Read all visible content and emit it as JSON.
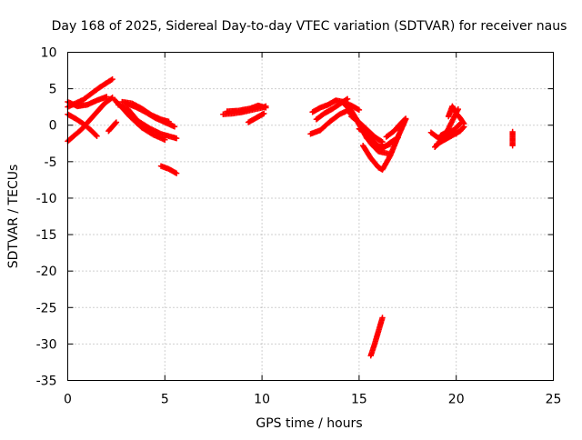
{
  "chart_data": {
    "type": "scatter",
    "title": "Day 168 of 2025, Sidereal Day-to-day VTEC variation (SDTVAR) for receiver naus",
    "xlabel": "GPS time / hours",
    "ylabel": "SDTVAR / TECUs",
    "xlim": [
      0,
      25
    ],
    "ylim": [
      -35,
      10
    ],
    "xticks": [
      0,
      5,
      10,
      15,
      20,
      25
    ],
    "xtick_labels": [
      "0",
      "5",
      "10",
      "15",
      "20",
      "25"
    ],
    "yticks": [
      10,
      5,
      0,
      -5,
      -10,
      -15,
      -20,
      -25,
      -30,
      -35
    ],
    "ytick_labels": [
      "10",
      "5",
      "0",
      "-5",
      "-10",
      "-15",
      "-20",
      "-25",
      "-30",
      "-35"
    ],
    "grid": true,
    "marker": "plus",
    "series": [
      {
        "name": "SDTVAR",
        "color": "#ff0000",
        "tracks": [
          {
            "x": [
              0.0,
              0.4,
              0.8,
              1.2,
              1.6,
              2.0,
              2.3
            ],
            "y": [
              2.5,
              3.0,
              3.5,
              4.3,
              5.1,
              5.8,
              6.3
            ]
          },
          {
            "x": [
              0.0,
              0.3,
              0.7,
              1.1,
              1.5,
              1.9,
              2.3
            ],
            "y": [
              -2.2,
              -1.5,
              -0.6,
              0.6,
              1.8,
              3.0,
              3.8
            ]
          },
          {
            "x": [
              0.0,
              0.4,
              0.8,
              1.2,
              1.5
            ],
            "y": [
              1.5,
              0.9,
              0.2,
              -0.7,
              -1.5
            ]
          },
          {
            "x": [
              0.0,
              0.5,
              1.0,
              1.5,
              2.0
            ],
            "y": [
              3.2,
              2.6,
              2.8,
              3.4,
              3.9
            ]
          },
          {
            "x": [
              2.1,
              2.3,
              2.5
            ],
            "y": [
              -0.8,
              -0.2,
              0.4
            ]
          },
          {
            "x": [
              2.4,
              2.8,
              3.2,
              3.8,
              4.4,
              5.0
            ],
            "y": [
              3.5,
              2.4,
              1.2,
              -0.3,
              -1.3,
              -2.0
            ]
          },
          {
            "x": [
              2.6,
              3.1,
              3.6,
              4.2,
              4.8,
              5.6
            ],
            "y": [
              2.8,
              2.2,
              0.6,
              -0.4,
              -1.2,
              -1.8
            ]
          },
          {
            "x": [
              2.8,
              3.3,
              3.8,
              4.3,
              4.8,
              5.2
            ],
            "y": [
              3.2,
              3.0,
              2.3,
              1.4,
              0.8,
              0.5
            ]
          },
          {
            "x": [
              3.0,
              3.5,
              4.0,
              4.5,
              5.0,
              5.5
            ],
            "y": [
              3.0,
              2.5,
              1.8,
              1.0,
              0.4,
              -0.2
            ]
          },
          {
            "x": [
              4.8,
              5.2,
              5.6
            ],
            "y": [
              -5.6,
              -6.0,
              -6.6
            ]
          },
          {
            "x": [
              8.0,
              8.5,
              9.0,
              9.5,
              10.0,
              10.2
            ],
            "y": [
              1.5,
              1.6,
              1.8,
              2.1,
              2.4,
              2.6
            ]
          },
          {
            "x": [
              8.2,
              8.8,
              9.4,
              9.8,
              10.2
            ],
            "y": [
              1.9,
              2.0,
              2.3,
              2.7,
              2.4
            ]
          },
          {
            "x": [
              9.3,
              9.7,
              10.1
            ],
            "y": [
              0.4,
              1.0,
              1.6
            ]
          },
          {
            "x": [
              12.5,
              13.0,
              13.5,
              14.0,
              14.4,
              14.8,
              15.3
            ],
            "y": [
              -1.2,
              -0.7,
              0.5,
              1.5,
              2.0,
              1.0,
              -0.8
            ]
          },
          {
            "x": [
              12.6,
              13.0,
              13.4,
              13.8,
              14.2,
              14.6,
              15.0
            ],
            "y": [
              1.8,
              2.4,
              2.8,
              3.4,
              3.2,
              2.7,
              2.1
            ]
          },
          {
            "x": [
              12.8,
              13.2,
              13.6,
              14.0,
              14.4
            ],
            "y": [
              0.8,
              1.6,
              2.2,
              2.9,
              3.6
            ]
          },
          {
            "x": [
              14.2,
              14.6,
              15.0,
              15.4,
              15.8,
              16.2,
              16.6
            ],
            "y": [
              3.0,
              2.0,
              0.2,
              -1.8,
              -2.8,
              -3.0,
              -2.6
            ]
          },
          {
            "x": [
              14.4,
              14.8,
              15.2,
              15.6,
              16.0,
              16.5
            ],
            "y": [
              2.5,
              1.0,
              -0.8,
              -2.5,
              -3.6,
              -3.9
            ]
          },
          {
            "x": [
              14.6,
              15.0,
              15.4,
              15.8,
              16.2
            ],
            "y": [
              1.2,
              0.4,
              -0.6,
              -1.6,
              -2.3
            ]
          },
          {
            "x": [
              15.0,
              15.4,
              15.8,
              16.2,
              16.6,
              17.0
            ],
            "y": [
              -0.5,
              -1.2,
              -2.4,
              -3.2,
              -2.4,
              -1.7
            ]
          },
          {
            "x": [
              15.2,
              15.6,
              16.0,
              16.2,
              16.6,
              17.0,
              17.4
            ],
            "y": [
              -2.8,
              -4.5,
              -5.8,
              -6.1,
              -4.2,
              -1.6,
              0.8
            ]
          },
          {
            "x": [
              16.4,
              16.8,
              17.2,
              17.4
            ],
            "y": [
              -1.6,
              -0.8,
              0.4,
              0.9
            ]
          },
          {
            "x": [
              15.6,
              15.8,
              16.0,
              16.2
            ],
            "y": [
              -31.6,
              -30.0,
              -28.2,
              -26.4
            ]
          },
          {
            "x": [
              18.7,
              19.1,
              19.5,
              19.9,
              20.2
            ],
            "y": [
              -1.0,
              -1.8,
              -1.2,
              -0.6,
              0.2
            ]
          },
          {
            "x": [
              18.9,
              19.2,
              19.5,
              19.8,
              20.1
            ],
            "y": [
              -3.0,
              -2.2,
              -1.0,
              0.6,
              2.2
            ]
          },
          {
            "x": [
              19.0,
              19.4,
              19.8,
              20.2,
              20.4
            ],
            "y": [
              -2.6,
              -2.0,
              -1.4,
              -0.8,
              -0.2
            ]
          },
          {
            "x": [
              19.6,
              19.8,
              20.0,
              20.2,
              20.4
            ],
            "y": [
              1.2,
              2.6,
              1.6,
              1.0,
              0.2
            ]
          },
          {
            "x": [
              19.2,
              19.6,
              20.0
            ],
            "y": [
              -1.4,
              -0.8,
              -1.2
            ]
          },
          {
            "x": [
              22.9,
              22.9,
              22.9,
              22.9
            ],
            "y": [
              -0.9,
              -1.6,
              -2.1,
              -2.8
            ]
          }
        ]
      }
    ]
  }
}
